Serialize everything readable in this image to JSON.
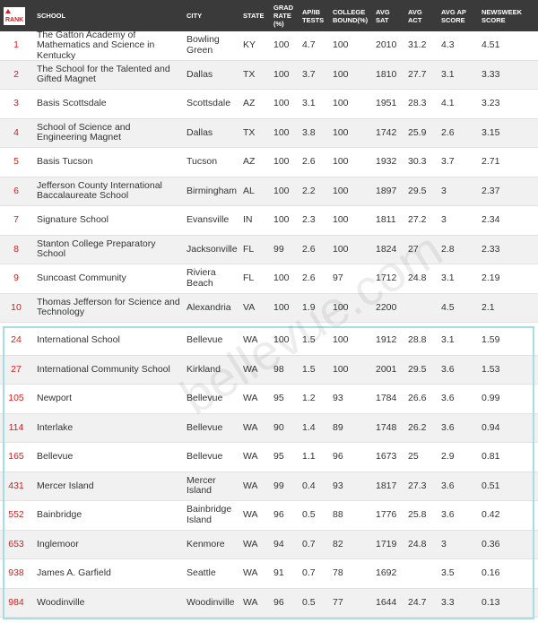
{
  "header": [
    "RANK",
    "SCHOOL",
    "CITY",
    "STATE",
    "GRAD RATE (%)",
    "AP/IB TESTS",
    "COLLEGE BOUND(%)",
    "AVG SAT",
    "AVG ACT",
    "AVG AP SCORE",
    "NEWSWEEK SCORE"
  ],
  "top_schools": [
    [
      1,
      "The Gatton Academy of Mathematics and Science in Kentucky",
      "Bowling Green",
      "KY",
      100,
      4.7,
      100,
      2010,
      31.2,
      4.3,
      4.51
    ],
    [
      2,
      "The School for the Talented and Gifted Magnet",
      "Dallas",
      "TX",
      100,
      3.7,
      100,
      1810,
      27.7,
      3.1,
      3.33
    ],
    [
      3,
      "Basis Scottsdale",
      "Scottsdale",
      "AZ",
      100,
      3.1,
      100,
      1951,
      28.3,
      4.1,
      3.23
    ],
    [
      4,
      "School of Science and Engineering Magnet",
      "Dallas",
      "TX",
      100,
      3.8,
      100,
      1742,
      25.9,
      2.6,
      3.15
    ],
    [
      5,
      "Basis Tucson",
      "Tucson",
      "AZ",
      100,
      2.6,
      100,
      1932,
      30.3,
      3.7,
      2.71
    ],
    [
      6,
      "Jefferson County International Baccalaureate School",
      "Birmingham",
      "AL",
      100,
      2.2,
      100,
      1897,
      29.5,
      3,
      2.37
    ],
    [
      7,
      "Signature School",
      "Evansville",
      "IN",
      100,
      2.3,
      100,
      1811,
      27.2,
      3,
      2.34
    ],
    [
      8,
      "Stanton College Preparatory School",
      "Jacksonville",
      "FL",
      99,
      2.6,
      100,
      1824,
      27,
      2.8,
      2.33
    ],
    [
      9,
      "Suncoast Community",
      "Riviera Beach",
      "FL",
      100,
      2.6,
      97,
      1712,
      24.8,
      3.1,
      2.19
    ],
    [
      10,
      "Thomas Jefferson for Science and Technology",
      "Alexandria",
      "VA",
      100,
      1.9,
      100,
      2200,
      null,
      4.5,
      2.1
    ]
  ],
  "bellevue_schools": [
    [
      24,
      "International School",
      "Bellevue",
      "WA",
      100,
      1.5,
      100,
      1912,
      28.8,
      3.1,
      1.59
    ],
    [
      27,
      "International Community School",
      "Kirkland",
      "WA",
      98,
      1.5,
      100,
      2001,
      29.5,
      3.6,
      1.53
    ],
    [
      105,
      "Newport",
      "Bellevue",
      "WA",
      95,
      1.2,
      93,
      1784,
      26.6,
      3.6,
      0.99
    ],
    [
      114,
      "Interlake",
      "Bellevue",
      "WA",
      90,
      1.4,
      89,
      1748,
      26.2,
      3.6,
      0.94
    ],
    [
      165,
      "Bellevue",
      "Bellevue",
      "WA",
      95,
      1.1,
      96,
      1673,
      25,
      2.9,
      0.81
    ],
    [
      431,
      "Mercer Island",
      "Mercer Island",
      "WA",
      99,
      0.4,
      93,
      1817,
      27.3,
      3.6,
      0.51
    ],
    [
      552,
      "Bainbridge",
      "Bainbridge Island",
      "WA",
      96,
      0.5,
      88,
      1776,
      25.8,
      3.6,
      0.42
    ],
    [
      653,
      "Inglemoor",
      "Kenmore",
      "WA",
      94,
      0.7,
      82,
      1719,
      24.8,
      3,
      0.36
    ],
    [
      938,
      "James A. Garfield",
      "Seattle",
      "WA",
      91,
      0.7,
      78,
      1692,
      null,
      3.5,
      0.16
    ],
    [
      984,
      "Woodinville",
      "Woodinville",
      "WA",
      96,
      0.5,
      77,
      1644,
      24.7,
      3.3,
      0.13
    ]
  ],
  "watermark": "bellevue.com"
}
